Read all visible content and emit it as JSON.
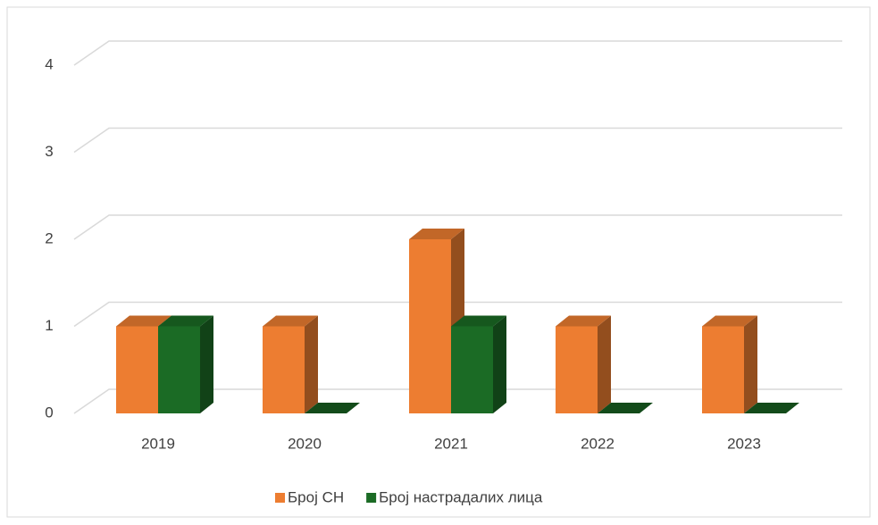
{
  "chart_data": {
    "type": "bar3d",
    "categories": [
      "2019",
      "2020",
      "2021",
      "2022",
      "2023"
    ],
    "series": [
      {
        "name": "Број СН",
        "color": "#ED7D31",
        "values": [
          1,
          1,
          2,
          1,
          1
        ]
      },
      {
        "name": "Број настрадалих лица",
        "color": "#1B6B25",
        "values": [
          1,
          0,
          1,
          0,
          0
        ]
      }
    ],
    "ylim": [
      0,
      4
    ],
    "yticks": [
      0,
      1,
      2,
      3,
      4
    ],
    "grid": true,
    "legend": "bottom"
  }
}
